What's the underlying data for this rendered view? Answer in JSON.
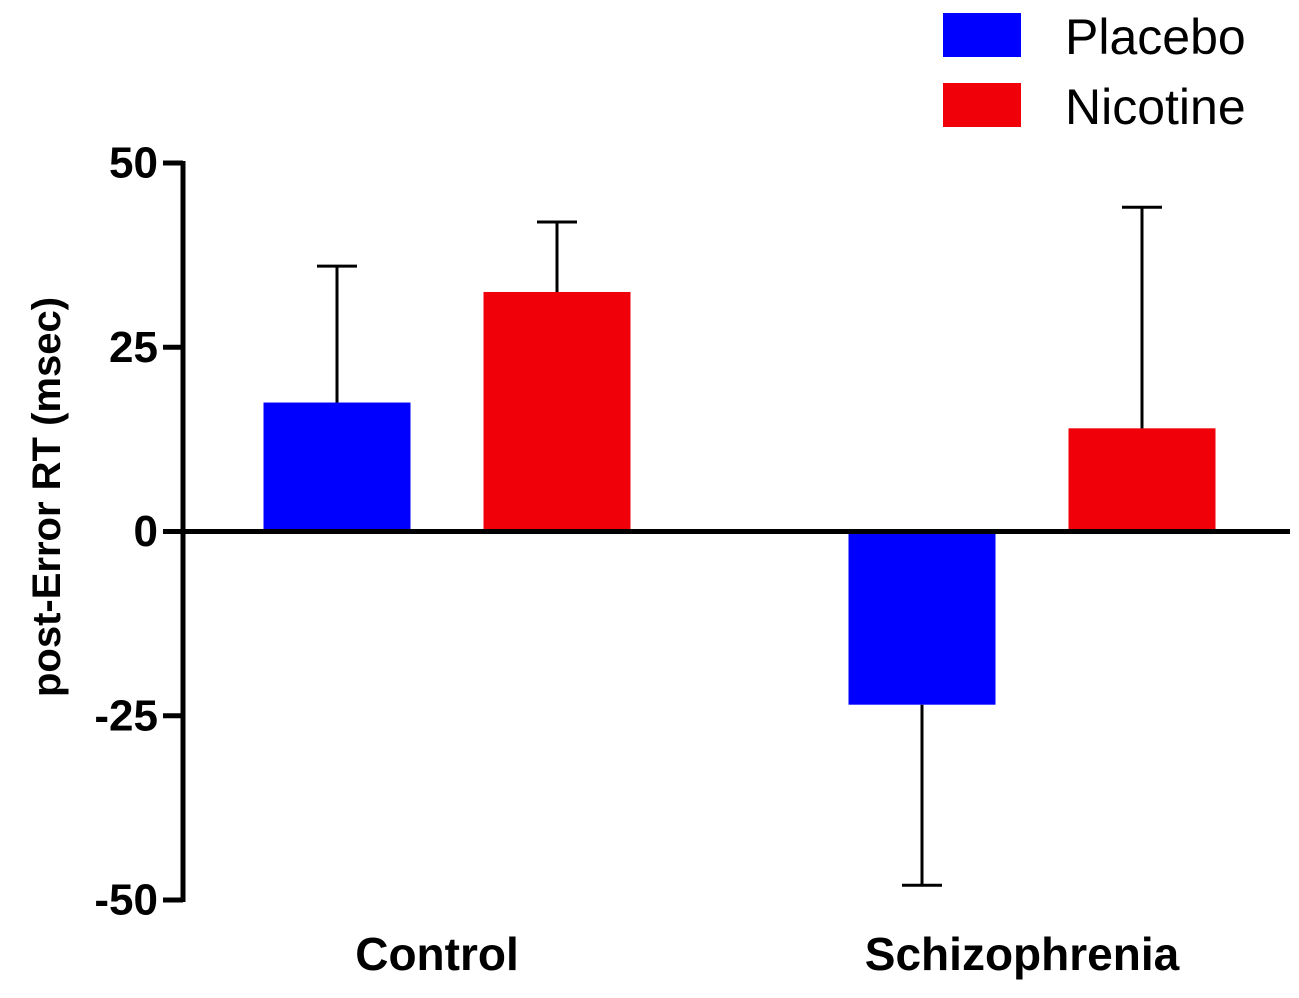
{
  "chart_data": {
    "type": "bar",
    "title": "",
    "xlabel": "",
    "ylabel": "post-Error RT (msec)",
    "categories": [
      "Control",
      "Schizophrenia"
    ],
    "ylim": [
      -50,
      50
    ],
    "yticks": [
      50,
      25,
      0,
      -25,
      -50
    ],
    "ytick_labels": [
      "50",
      "25",
      "0",
      "-25",
      "-50"
    ],
    "grid": false,
    "legend_position": "top-right",
    "series": [
      {
        "name": "Placebo",
        "color": "#0000ff",
        "values": [
          17.5,
          -23.5
        ],
        "errors": [
          18.5,
          24.5
        ]
      },
      {
        "name": "Nicotine",
        "color": "#f00008",
        "values": [
          32.5,
          14
        ],
        "errors": [
          9.5,
          30
        ]
      }
    ]
  }
}
